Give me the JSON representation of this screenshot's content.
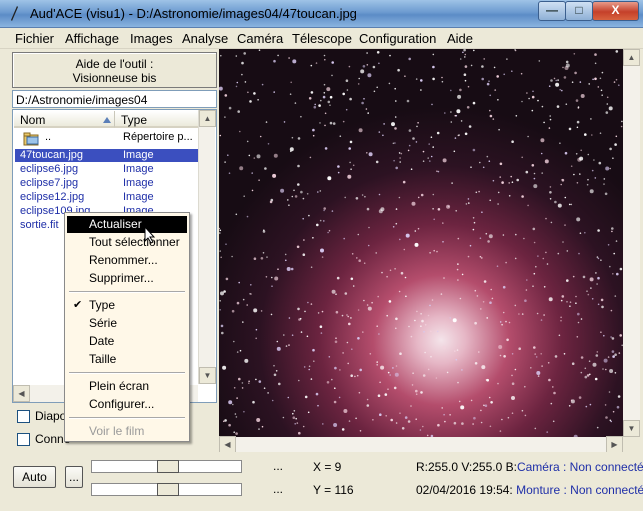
{
  "window": {
    "title": "Aud'ACE (visu1) - D:/Astronomie/images04/47toucan.jpg",
    "min_glyph": "—",
    "max_glyph": "□",
    "close_glyph": "X"
  },
  "menu": [
    "Fichier",
    "Affichage",
    "Images",
    "Analyse",
    "Caméra",
    "Télescope",
    "Configuration",
    "Aide"
  ],
  "tool_help": {
    "line1": "Aide de l'outil :",
    "line2": "Visionneuse bis"
  },
  "path": "D:/Astronomie/images04",
  "file_list": {
    "columns": [
      "Nom",
      "Type"
    ],
    "parent_row": {
      "name": "..",
      "type": "Répertoire p..."
    },
    "rows": [
      {
        "name": "47toucan.jpg",
        "type": "Image"
      },
      {
        "name": "eclipse6.jpg",
        "type": "Image"
      },
      {
        "name": "eclipse7.jpg",
        "type": "Image"
      },
      {
        "name": "eclipse12.jpg",
        "type": "Image"
      },
      {
        "name": "eclipse109.jpg",
        "type": "Image"
      },
      {
        "name": "sortie.fit",
        "type": ""
      }
    ]
  },
  "checkboxes": [
    {
      "label": "Diapo",
      "checked": false
    },
    {
      "label": "Conne",
      "checked": false
    }
  ],
  "context_menu": {
    "items": [
      {
        "label": "Actualiser",
        "highlighted": true
      },
      {
        "label": "Tout sélectionner"
      },
      {
        "label": "Renommer..."
      },
      {
        "label": "Supprimer..."
      },
      {
        "label": "Type",
        "checked": true
      },
      {
        "label": "Série"
      },
      {
        "label": "Date"
      },
      {
        "label": "Taille"
      },
      {
        "label": "Plein écran"
      },
      {
        "label": "Configurer..."
      },
      {
        "label": "Voir le film",
        "disabled": true
      }
    ],
    "check_glyph": "✔"
  },
  "bottom": {
    "auto_label": "Auto",
    "ellipsis_label": "...",
    "slider1_dots": "...",
    "slider2_dots": "...",
    "x_readout": "X = 9",
    "y_readout": "Y = 116",
    "rgb_readout": "R:255.0 V:255.0 B:",
    "camera_label": "Caméra",
    "camera_status": ": Non connectée",
    "datetime": "02/04/2016 19:54:",
    "mount_label": "Monture",
    "mount_status": ": Non connectée"
  },
  "colors": {
    "selection": "#3b4fbf",
    "link_blue": "#1f2fa8",
    "menu_bg": "#fff8e8"
  },
  "icons": [
    "app-icon",
    "folder-up-icon",
    "sort-arrow-icon",
    "checkmark-icon",
    "cursor-arrow-icon"
  ]
}
